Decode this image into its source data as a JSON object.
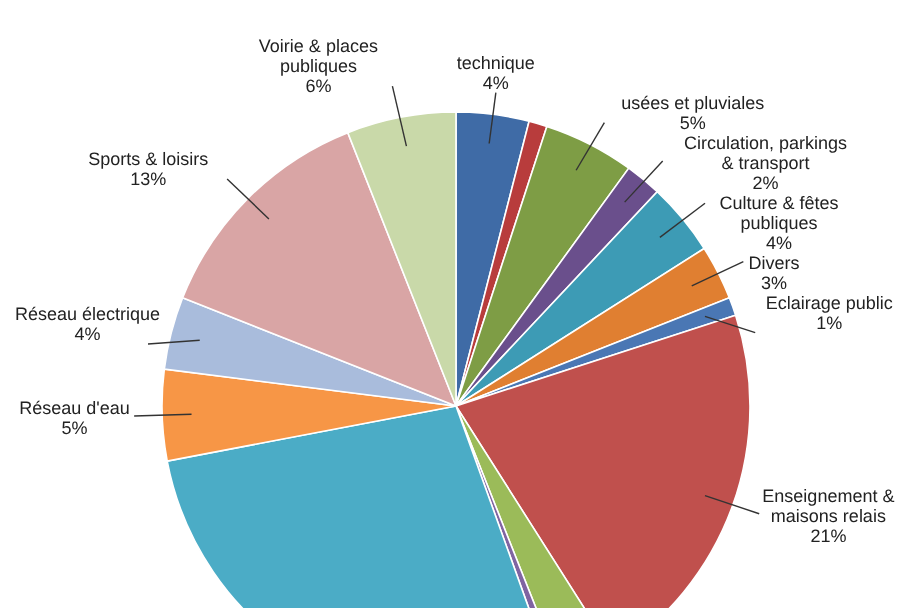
{
  "chart_data": {
    "type": "pie",
    "categories": [
      "technique",
      null,
      "usées et pluviales",
      "Circulation, parkings & transport",
      "Culture & fêtes publiques",
      "Divers",
      "Eclairage public",
      "Enseignement & maisons relais",
      null,
      null,
      null,
      "Réseau d'eau",
      "Réseau électrique",
      "Sports & loisirs",
      "Voirie & places publiques"
    ],
    "values": [
      4,
      1,
      5,
      2,
      4,
      3,
      1,
      21,
      3,
      0.5,
      27.5,
      5,
      4,
      13,
      6
    ],
    "value_labels": [
      "4%",
      null,
      "5%",
      "2%",
      "4%",
      "3%",
      "1%",
      "21%",
      null,
      null,
      null,
      "5%",
      "4%",
      "13%",
      "6%"
    ],
    "colors": [
      "#3f6ba6",
      "#b83c3c",
      "#7e9d45",
      "#6a4f8c",
      "#3d9bb5",
      "#e07f31",
      "#4a77b4",
      "#c0504d",
      "#9bbb59",
      "#8064a2",
      "#4bacc6",
      "#f79646",
      "#a9bcdc",
      "#d9a5a5",
      "#c9d9a9"
    ]
  }
}
